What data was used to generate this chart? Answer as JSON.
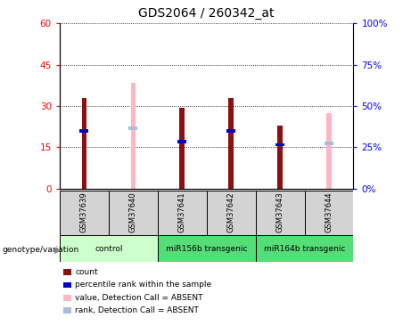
{
  "title": "GDS2064 / 260342_at",
  "samples": [
    "GSM37639",
    "GSM37640",
    "GSM37641",
    "GSM37642",
    "GSM37643",
    "GSM37644"
  ],
  "count_values": [
    33,
    0,
    29.5,
    33,
    23,
    0
  ],
  "percentile_values": [
    21,
    0,
    17,
    21,
    16,
    0
  ],
  "absent_value_bars": [
    0,
    38.5,
    0,
    0,
    0,
    27.5
  ],
  "absent_rank_bars": [
    0,
    22,
    0,
    0,
    0,
    16.5
  ],
  "has_count": [
    true,
    false,
    true,
    true,
    true,
    false
  ],
  "has_absent": [
    false,
    true,
    false,
    false,
    false,
    true
  ],
  "ylim_left": [
    0,
    60
  ],
  "ylim_right": [
    0,
    100
  ],
  "yticks_left": [
    0,
    15,
    30,
    45,
    60
  ],
  "yticks_right": [
    0,
    25,
    50,
    75,
    100
  ],
  "ytick_labels_left": [
    "0",
    "15",
    "30",
    "45",
    "60"
  ],
  "ytick_labels_right": [
    "0%",
    "25%",
    "50%",
    "75%",
    "100%"
  ],
  "count_color": "#8B1010",
  "percentile_color": "#0000CC",
  "absent_value_color": "#FFB6C1",
  "absent_rank_color": "#AABBDD",
  "group_info": [
    {
      "label": "control",
      "start": 0,
      "end": 1,
      "color": "#CCFFCC"
    },
    {
      "label": "miR156b transgenic",
      "start": 2,
      "end": 3,
      "color": "#55DD77"
    },
    {
      "label": "miR164b transgenic",
      "start": 4,
      "end": 5,
      "color": "#55DD77"
    }
  ],
  "legend_items": [
    {
      "label": "count",
      "color": "#8B1010"
    },
    {
      "label": "percentile rank within the sample",
      "color": "#0000CC"
    },
    {
      "label": "value, Detection Call = ABSENT",
      "color": "#FFB6C1"
    },
    {
      "label": "rank, Detection Call = ABSENT",
      "color": "#AABBDD"
    }
  ]
}
